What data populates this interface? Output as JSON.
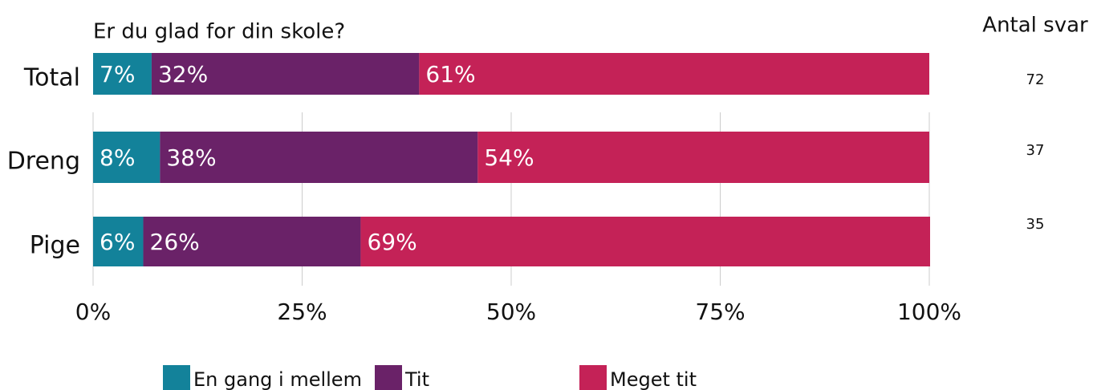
{
  "chart_data": {
    "type": "stacked_barh",
    "title": "Er du glad for din skole?",
    "categories": [
      "Total",
      "Dreng",
      "Pige"
    ],
    "series": [
      {
        "name": "En gang i mellem",
        "color": "#13829a",
        "values": [
          7,
          8,
          6
        ]
      },
      {
        "name": "Tit",
        "color": "#6a2268",
        "values": [
          32,
          38,
          26
        ]
      },
      {
        "name": "Meget tit",
        "color": "#c42257",
        "values": [
          61,
          54,
          69
        ]
      }
    ],
    "value_labels": [
      [
        "7%",
        "8%",
        "6%"
      ],
      [
        "32%",
        "38%",
        "26%"
      ],
      [
        "61%",
        "54%",
        "69%"
      ]
    ],
    "xlim": [
      0,
      100
    ],
    "xticks": [
      {
        "value": 0,
        "label": "0%"
      },
      {
        "value": 25,
        "label": "25%"
      },
      {
        "value": 50,
        "label": "50%"
      },
      {
        "value": 75,
        "label": "75%"
      },
      {
        "value": 100,
        "label": "100%"
      }
    ],
    "grid": true,
    "counts_title": "Antal svar",
    "counts": [
      72,
      37,
      35
    ]
  }
}
